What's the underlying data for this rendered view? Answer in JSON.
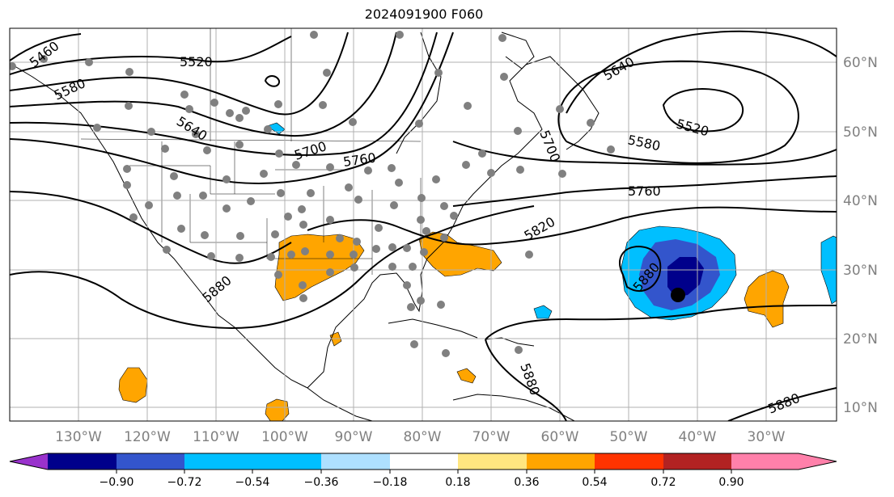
{
  "title": "2024091900 F060",
  "map": {
    "lon_labels": [
      "130°W",
      "120°W",
      "110°W",
      "100°W",
      "90°W",
      "80°W",
      "70°W",
      "60°W",
      "50°W",
      "40°W",
      "30°W"
    ],
    "lat_labels": [
      "60°N",
      "50°N",
      "40°N",
      "30°N",
      "20°N",
      "10°N"
    ],
    "grid": true,
    "land_color": "#ffffff",
    "station_color": "#808080",
    "contour_labels": [
      "5460",
      "5520",
      "5580",
      "5640",
      "5700",
      "5760",
      "5640",
      "5580",
      "5520",
      "5700",
      "5760",
      "5820",
      "5880",
      "5880",
      "5880",
      "5880"
    ]
  },
  "colorbar": {
    "tick_labels": [
      "−0.90",
      "−0.72",
      "−0.54",
      "−0.36",
      "−0.18",
      "0.18",
      "0.36",
      "0.54",
      "0.72",
      "0.90"
    ],
    "colors": [
      "#9932cc",
      "#00008b",
      "#3355cc",
      "#00bfff",
      "#aee0ff",
      "#ffffff",
      "#ffe680",
      "#ffa500",
      "#ff3300",
      "#b22222",
      "#ff80aa"
    ]
  }
}
